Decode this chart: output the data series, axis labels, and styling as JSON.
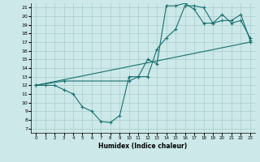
{
  "xlabel": "Humidex (Indice chaleur)",
  "bg_color": "#cce8e8",
  "grid_color": "#aacccc",
  "line_color": "#1a7070",
  "marker": "+",
  "xlim": [
    -0.5,
    23.5
  ],
  "ylim": [
    6.5,
    21.5
  ],
  "xticks": [
    0,
    1,
    2,
    3,
    4,
    5,
    6,
    7,
    8,
    9,
    10,
    11,
    12,
    13,
    14,
    15,
    16,
    17,
    18,
    19,
    20,
    21,
    22,
    23
  ],
  "yticks": [
    7,
    8,
    9,
    10,
    11,
    12,
    13,
    14,
    15,
    16,
    17,
    18,
    19,
    20,
    21
  ],
  "series": [
    {
      "x": [
        0,
        1,
        2,
        3,
        4,
        5,
        6,
        7,
        8,
        9,
        10,
        11,
        12,
        13,
        14,
        15,
        16,
        17,
        18,
        19,
        20,
        21,
        22,
        23
      ],
      "y": [
        12,
        12,
        12,
        11.5,
        11,
        9.5,
        9.0,
        7.8,
        7.7,
        8.5,
        13,
        13,
        15,
        14.5,
        21.2,
        21.2,
        21.5,
        20.8,
        19.2,
        19.2,
        20.2,
        19.2,
        19.5,
        17.5
      ]
    },
    {
      "x": [
        0,
        3,
        10,
        11,
        12,
        13,
        14,
        15,
        16,
        17,
        18,
        19,
        20,
        21,
        22,
        23
      ],
      "y": [
        12,
        12.5,
        12.5,
        13.0,
        13.0,
        16.2,
        17.5,
        18.5,
        21.2,
        21.2,
        21.0,
        19.2,
        19.5,
        19.5,
        20.2,
        17.2
      ]
    },
    {
      "x": [
        0,
        23
      ],
      "y": [
        12,
        17
      ]
    }
  ]
}
